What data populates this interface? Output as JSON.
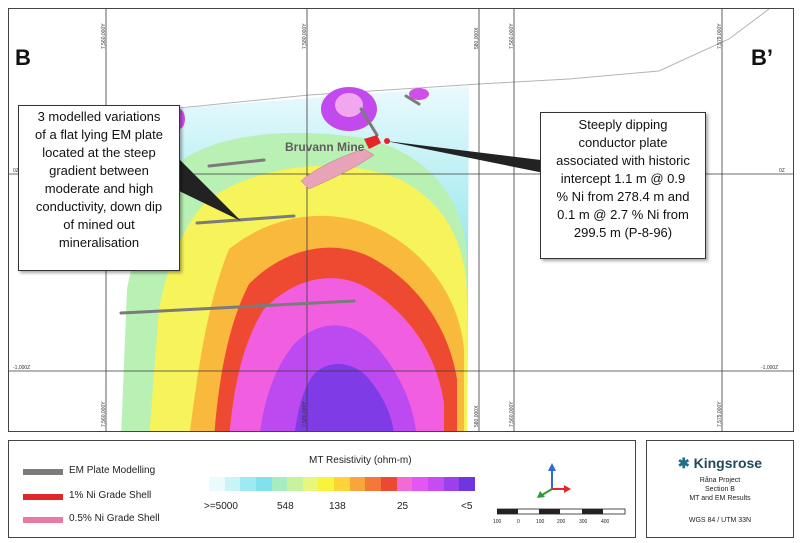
{
  "map": {
    "left_marker": "B",
    "right_marker": "B’",
    "mine_label": "Bruvann Mine",
    "grid_labels_top": [
      "7,560,000Y",
      "7,580,000Y",
      "580,000X",
      "7,560,000Y",
      "7,579,000Y"
    ],
    "grid_labels_bottom": [
      "7,560,000Y",
      "7,580,000Y",
      "580,000X",
      "7,560,000Y",
      "7,579,000Y"
    ],
    "elev_left": [
      "0Z",
      "-1,000Z"
    ],
    "elev_right": [
      "0Z",
      "-1,000Z"
    ]
  },
  "callout_left": {
    "lines": [
      "3 modelled variations",
      "of a flat lying EM plate",
      "located at the steep",
      "gradient between",
      "moderate and high",
      "conductivity, down dip",
      "of mined out",
      "mineralisation"
    ]
  },
  "callout_right": {
    "lines": [
      "Steeply dipping",
      "conductor plate",
      "associated with historic",
      "intercept 1.1 m @ 0.9",
      "% Ni from 278.4 m and",
      "0.1 m @ 2.7 % Ni from",
      "299.5 m (P-8-96)"
    ]
  },
  "legend": {
    "items": [
      {
        "label": "EM Plate Modelling",
        "color": "#7b7b7b"
      },
      {
        "label": "1% Ni Grade Shell",
        "color": "#e3262a"
      },
      {
        "label": "0.5% Ni Grade Shell",
        "color": "#e97aa3"
      }
    ],
    "mt_title": "MT Resistivity (ohm-m)",
    "ramp_labels": [
      ">=5000",
      "548",
      "138",
      "25",
      "<5"
    ],
    "ramp_colors": [
      "#e9fbfd",
      "#c8f3f7",
      "#9eeaf2",
      "#7fe2ec",
      "#a6ecc0",
      "#c7f2a0",
      "#e7f67d",
      "#f7f43b",
      "#fbd43a",
      "#f7a73a",
      "#f3783a",
      "#ea4a33",
      "#f06bd6",
      "#e356ef",
      "#c64cf2",
      "#9a41ec",
      "#6d36df"
    ],
    "scale_labels": [
      "100",
      "0",
      "100",
      "200",
      "300",
      "400"
    ]
  },
  "title_block": {
    "company": "Kingsrose",
    "lines": [
      "Råna Project",
      "Section B",
      "MT and EM Results"
    ],
    "projection": "WGS 84 / UTM 33N"
  }
}
